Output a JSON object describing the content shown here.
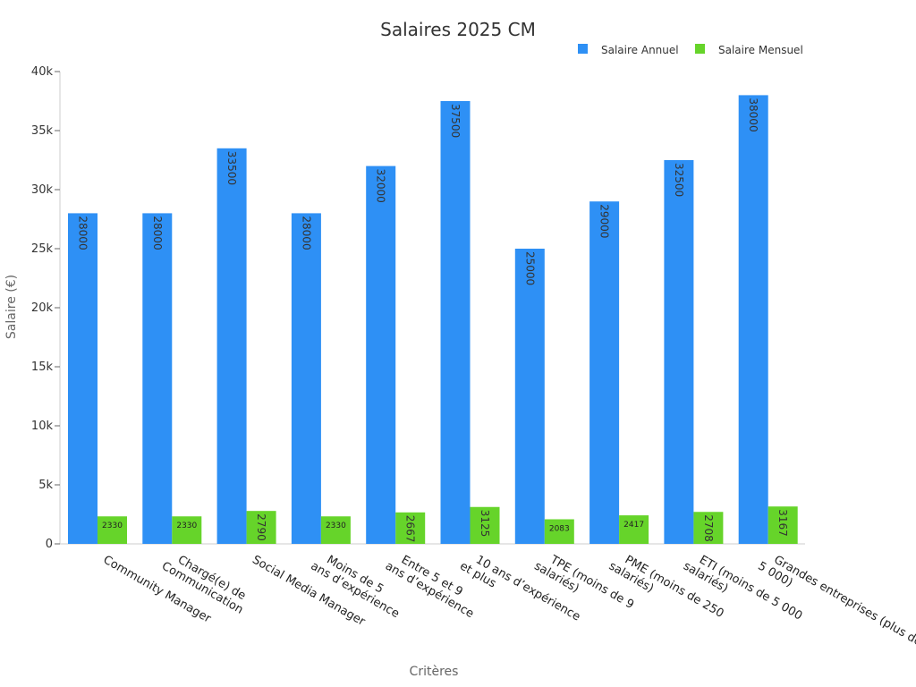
{
  "chart_data": {
    "type": "bar",
    "title": "Salaires 2025 CM",
    "xlabel": "Critères",
    "ylabel": "Salaire (€)",
    "ylim": [
      0,
      40000
    ],
    "yticks": [
      0,
      5000,
      10000,
      15000,
      20000,
      25000,
      30000,
      35000,
      40000
    ],
    "ytick_labels": [
      "0",
      "5k",
      "10k",
      "15k",
      "20k",
      "25k",
      "30k",
      "35k",
      "40k"
    ],
    "legend_position": "top-right",
    "grid": false,
    "categories": [
      [
        "Community Manager"
      ],
      [
        "Chargé(e) de",
        "Communication"
      ],
      [
        "Social Media Manager"
      ],
      [
        "Moins de 5",
        "ans d’expérience"
      ],
      [
        "Entre 5 et 9",
        "ans d’expérience"
      ],
      [
        "10 ans d’expérience",
        "et plus"
      ],
      [
        "TPE (moins de 9",
        "salariés)"
      ],
      [
        "PME (moins de 250",
        "salariés)"
      ],
      [
        "ETI (moins de 5 000",
        "salariés)"
      ],
      [
        "Grandes entreprises (plus de",
        "5 000)"
      ]
    ],
    "series": [
      {
        "name": "Salaire Annuel",
        "color": "#2e90f5",
        "values": [
          28000,
          28000,
          33500,
          28000,
          32000,
          37500,
          25000,
          29000,
          32500,
          38000
        ]
      },
      {
        "name": "Salaire Mensuel",
        "color": "#66d42a",
        "values": [
          2330,
          2330,
          2790,
          2330,
          2667,
          3125,
          2083,
          2417,
          2708,
          3167
        ]
      }
    ]
  }
}
